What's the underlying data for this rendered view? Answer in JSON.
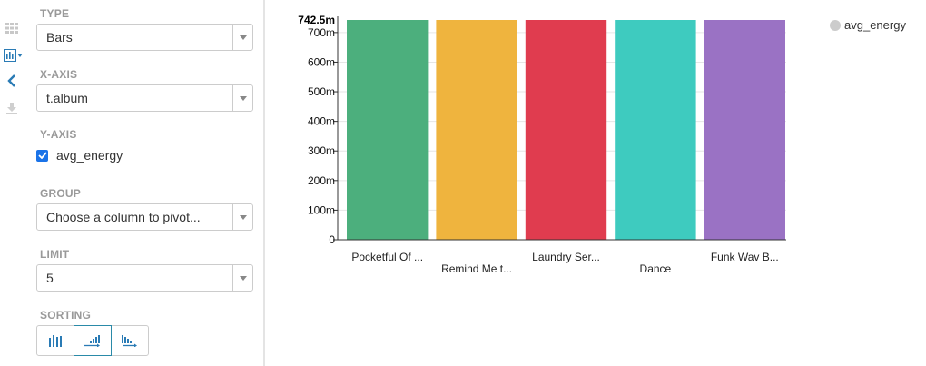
{
  "side_icons": [
    "grid-icon",
    "bar-chart-icon",
    "chevron-left-icon",
    "download-icon"
  ],
  "panel": {
    "type": {
      "label": "TYPE",
      "value": "Bars"
    },
    "x_axis": {
      "label": "X-AXIS",
      "value": "t.album"
    },
    "y_axis": {
      "label": "Y-AXIS",
      "checkbox_label": "avg_energy",
      "checked": true
    },
    "group": {
      "label": "GROUP",
      "placeholder": "Choose a column to pivot..."
    },
    "limit": {
      "label": "LIMIT",
      "value": "5"
    },
    "sorting": {
      "label": "SORTING",
      "buttons": [
        "sort-none-icon",
        "sort-ascending-icon",
        "sort-descending-icon"
      ],
      "active": 1
    }
  },
  "chart_data": {
    "type": "bar",
    "categories": [
      "Pocketful Of ...",
      "Remind Me t...",
      "Laundry Ser...",
      "Dance",
      "Funk Wav B..."
    ],
    "series": [
      {
        "name": "avg_energy",
        "values": [
          0.7425,
          0.7425,
          0.7425,
          0.7425,
          0.7425
        ]
      }
    ],
    "colors": [
      "#4caf7d",
      "#efb43e",
      "#e03c4f",
      "#3ecbbf",
      "#9a72c4"
    ],
    "y_ticks": [
      "0",
      "100m",
      "200m",
      "300m",
      "400m",
      "500m",
      "600m",
      "700m"
    ],
    "y_tick_values": [
      0,
      0.1,
      0.2,
      0.3,
      0.4,
      0.5,
      0.6,
      0.7
    ],
    "y_max_label": "742.5m",
    "ylim": [
      0,
      0.7425
    ],
    "grid": true,
    "legend_placement": "top-right"
  }
}
